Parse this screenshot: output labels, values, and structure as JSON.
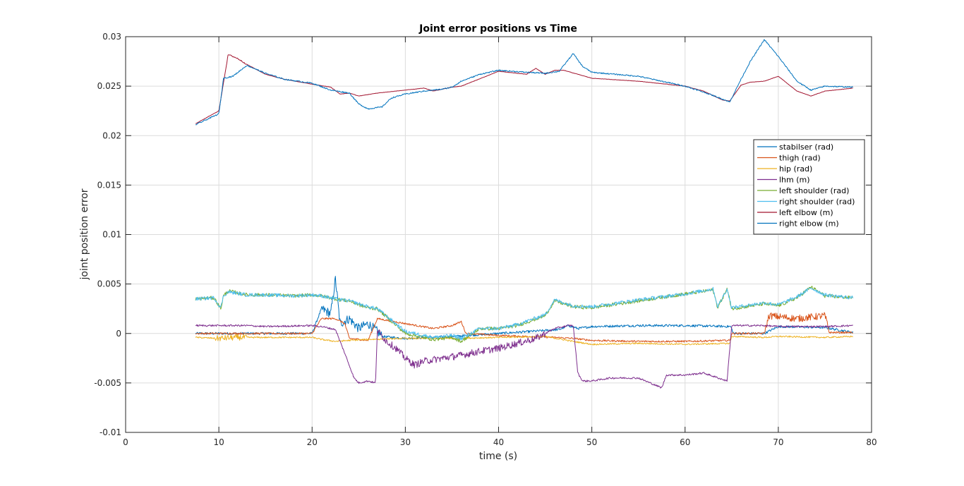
{
  "chart_data": {
    "type": "line",
    "title": "Joint error positions vs Time",
    "xlabel": "time (s)",
    "ylabel": "joint position error",
    "xlim": [
      0,
      80
    ],
    "ylim": [
      -0.01,
      0.03
    ],
    "xticks": [
      0,
      10,
      20,
      30,
      40,
      50,
      60,
      70,
      80
    ],
    "xtick_labels": [
      "0",
      "10",
      "20",
      "30",
      "40",
      "50",
      "60",
      "70",
      "80"
    ],
    "yticks": [
      -0.01,
      -0.005,
      0,
      0.005,
      0.01,
      0.015,
      0.02,
      0.025,
      0.03
    ],
    "ytick_labels": [
      "-0.01",
      "-0.005",
      "0",
      "0.005",
      "0.01",
      "0.015",
      "0.02",
      "0.025",
      "0.03"
    ],
    "grid": true,
    "legend_position": "upper-right",
    "series": [
      {
        "name": "stabilser (rad)",
        "color": "#0072BD",
        "x": [
          7.5,
          10,
          15,
          20,
          21,
          22,
          22.5,
          23,
          24,
          25,
          26,
          27,
          27.5,
          30,
          35,
          40,
          45,
          46.5,
          47.5,
          48.5,
          50,
          55,
          60,
          64.9,
          65.2,
          68.5,
          70,
          75,
          78
        ],
        "y": [
          0,
          0,
          0,
          0,
          0.0025,
          0.002,
          0.0055,
          0.001,
          0.0015,
          0.0005,
          0.001,
          0.0002,
          -0.0003,
          -0.0005,
          -0.0003,
          0,
          0.0003,
          0.0004,
          0.0008,
          0.0005,
          0.0007,
          0.0008,
          0.0008,
          0.0007,
          0,
          0,
          0.0007,
          0.0006,
          0.0001
        ],
        "noise": 0.0008,
        "noise_range": [
          21,
          27.5
        ]
      },
      {
        "name": "thigh (rad)",
        "color": "#D95319",
        "x": [
          7.5,
          20,
          21,
          22.5,
          23.5,
          24,
          26,
          27,
          30,
          33,
          35,
          36,
          36.5,
          40,
          46,
          48,
          50,
          55,
          60,
          64.8,
          65,
          68.5,
          69,
          72,
          75,
          75.5,
          78
        ],
        "y": [
          0,
          0,
          0.0015,
          0.0015,
          0.001,
          -0.0005,
          -0.0007,
          0.0015,
          0.001,
          0.0005,
          0.0008,
          0.0012,
          0,
          -0.0002,
          -0.0004,
          -0.0005,
          -0.0007,
          -0.0008,
          -0.0008,
          -0.0007,
          0,
          0,
          0.0018,
          0.0015,
          0.0018,
          0.0001,
          0.0001
        ],
        "noise": 0.0006,
        "noise_range": [
          68.6,
          75.5
        ]
      },
      {
        "name": "hip (rad)",
        "color": "#EDB120",
        "x": [
          7.5,
          10,
          12,
          15,
          20,
          21,
          22.5,
          24,
          26,
          30,
          35,
          40,
          45,
          48,
          50,
          55,
          60,
          64.8,
          65,
          68.5,
          70,
          75,
          78
        ],
        "y": [
          -0.0004,
          -0.0005,
          -0.0004,
          -0.0004,
          -0.0004,
          -0.0006,
          -0.0008,
          -0.0007,
          -0.0006,
          -0.0005,
          -0.0005,
          -0.0004,
          -0.0003,
          -0.0008,
          -0.0011,
          -0.001,
          -0.0011,
          -0.001,
          -0.0003,
          -0.0004,
          -0.0003,
          -0.0004,
          -0.0003
        ],
        "noise": 0.0005,
        "noise_range": [
          9.5,
          13
        ]
      },
      {
        "name": "lhm (m)",
        "color": "#7E2F8E",
        "x": [
          7.5,
          10,
          13,
          15,
          20,
          21,
          22.5,
          23.5,
          24.5,
          25,
          26,
          26.8,
          27,
          28,
          29,
          30,
          31,
          32,
          34,
          36,
          38,
          40,
          42,
          44,
          45,
          46,
          47.5,
          48,
          48.5,
          49,
          50,
          52,
          55,
          57.5,
          58,
          60,
          62,
          64.5,
          65,
          68.5,
          70,
          75,
          78
        ],
        "y": [
          0.0008,
          0.0008,
          0.0008,
          0.0007,
          0.0008,
          0.0007,
          0.0004,
          -0.002,
          -0.0045,
          -0.005,
          -0.0048,
          -0.005,
          0.0003,
          -0.0008,
          -0.0015,
          -0.0025,
          -0.0032,
          -0.0028,
          -0.0025,
          -0.0022,
          -0.0018,
          -0.0015,
          -0.001,
          -0.0005,
          0,
          0.0005,
          0.0008,
          0.0008,
          -0.004,
          -0.0048,
          -0.0048,
          -0.0045,
          -0.0045,
          -0.0055,
          -0.0042,
          -0.0042,
          -0.004,
          -0.0048,
          0.0008,
          0.0008,
          0.0007,
          0.0007,
          0.0008
        ],
        "noise": 0.0006,
        "noise_range": [
          27,
          45
        ]
      },
      {
        "name": "left shoulder (rad)",
        "color": "#77AC30",
        "x": [
          7.5,
          9.5,
          10.2,
          10.5,
          11,
          13,
          15,
          18,
          20,
          21,
          22,
          23,
          24,
          25,
          26,
          27,
          30,
          33,
          35,
          36,
          38,
          40,
          42,
          45,
          46,
          48,
          50,
          55,
          60,
          63,
          63.5,
          64.5,
          65,
          68.5,
          70,
          72,
          73.5,
          75,
          78
        ],
        "y": [
          0.0035,
          0.0036,
          0.0025,
          0.0038,
          0.0043,
          0.0039,
          0.0039,
          0.0038,
          0.0039,
          0.0038,
          0.0036,
          0.0034,
          0.0033,
          0.0029,
          0.0026,
          0.0025,
          0,
          -0.0006,
          -0.0004,
          -0.0008,
          0.0005,
          0.0005,
          0.0008,
          0.0018,
          0.0033,
          0.0027,
          0.0026,
          0.0033,
          0.004,
          0.0044,
          0.0026,
          0.0045,
          0.0025,
          0.003,
          0.0028,
          0.0036,
          0.0047,
          0.0038,
          0.0036
        ],
        "noise": 0.0003,
        "noise_range": [
          7.5,
          78
        ]
      },
      {
        "name": "right shoulder (rad)",
        "color": "#4DBEEE",
        "x": [
          7.5,
          9.5,
          10.2,
          10.5,
          11,
          13,
          15,
          18,
          20,
          21,
          22,
          23,
          24,
          25,
          26,
          27,
          30,
          33,
          35,
          36,
          38,
          40,
          42,
          45,
          46,
          48,
          50,
          55,
          60,
          63,
          63.5,
          64.5,
          65,
          68.5,
          70,
          72,
          73.5,
          75,
          78
        ],
        "y": [
          0.0035,
          0.0036,
          0.0026,
          0.0038,
          0.0042,
          0.0039,
          0.0039,
          0.0038,
          0.0039,
          0.0038,
          0.0036,
          0.0034,
          0.0033,
          0.003,
          0.0027,
          0.0025,
          0.0002,
          -0.0004,
          -0.0002,
          -0.0005,
          0.0005,
          0.0005,
          0.0009,
          0.0019,
          0.0034,
          0.0028,
          0.0027,
          0.0034,
          0.004,
          0.0045,
          0.0027,
          0.0045,
          0.0026,
          0.0031,
          0.0029,
          0.0037,
          0.0046,
          0.0039,
          0.0036
        ],
        "noise": 0.0003,
        "noise_range": [
          7.5,
          78
        ]
      },
      {
        "name": "left elbow (m)",
        "color": "#A2142F",
        "x": [
          7.5,
          10,
          11,
          12,
          13,
          15,
          17,
          20,
          22,
          23,
          24,
          25,
          27,
          30,
          32,
          33,
          35,
          36,
          40,
          43,
          44,
          45,
          46,
          47,
          50,
          55,
          60,
          62,
          64,
          64.8,
          66,
          67,
          68.5,
          70,
          72,
          73.5,
          75,
          78
        ],
        "y": [
          0.0212,
          0.0225,
          0.0282,
          0.0278,
          0.0272,
          0.0262,
          0.0257,
          0.0252,
          0.0249,
          0.0242,
          0.0243,
          0.024,
          0.0243,
          0.0246,
          0.0248,
          0.0245,
          0.0249,
          0.025,
          0.0265,
          0.0262,
          0.0268,
          0.0262,
          0.0266,
          0.0266,
          0.0258,
          0.0255,
          0.025,
          0.0245,
          0.0236,
          0.0235,
          0.0251,
          0.0254,
          0.0255,
          0.026,
          0.0245,
          0.024,
          0.0245,
          0.0248
        ],
        "noise": 0.0001,
        "noise_range": [
          10.8,
          13
        ]
      },
      {
        "name": "right elbow (m)",
        "color": "#0072BD",
        "x": [
          7.5,
          10,
          10.5,
          11.5,
          13,
          15,
          17,
          20,
          22,
          24,
          25,
          26,
          27.5,
          28.5,
          30,
          32,
          34,
          35,
          36,
          38,
          40,
          43,
          45,
          46.5,
          48,
          49,
          50,
          55,
          60,
          62,
          64,
          64.8,
          66,
          67,
          68.5,
          70,
          72,
          73.5,
          75,
          78
        ],
        "y": [
          0.0211,
          0.0222,
          0.0258,
          0.026,
          0.0271,
          0.0263,
          0.0257,
          0.0253,
          0.0246,
          0.0243,
          0.0232,
          0.0227,
          0.0229,
          0.0238,
          0.0242,
          0.0245,
          0.0247,
          0.0249,
          0.0255,
          0.0262,
          0.0266,
          0.0264,
          0.0263,
          0.0265,
          0.0283,
          0.027,
          0.0264,
          0.026,
          0.025,
          0.0244,
          0.0237,
          0.0234,
          0.0257,
          0.0275,
          0.0297,
          0.028,
          0.0255,
          0.0246,
          0.025,
          0.0249
        ],
        "noise": 0.0001,
        "noise_range": [
          7.5,
          78
        ]
      }
    ]
  }
}
